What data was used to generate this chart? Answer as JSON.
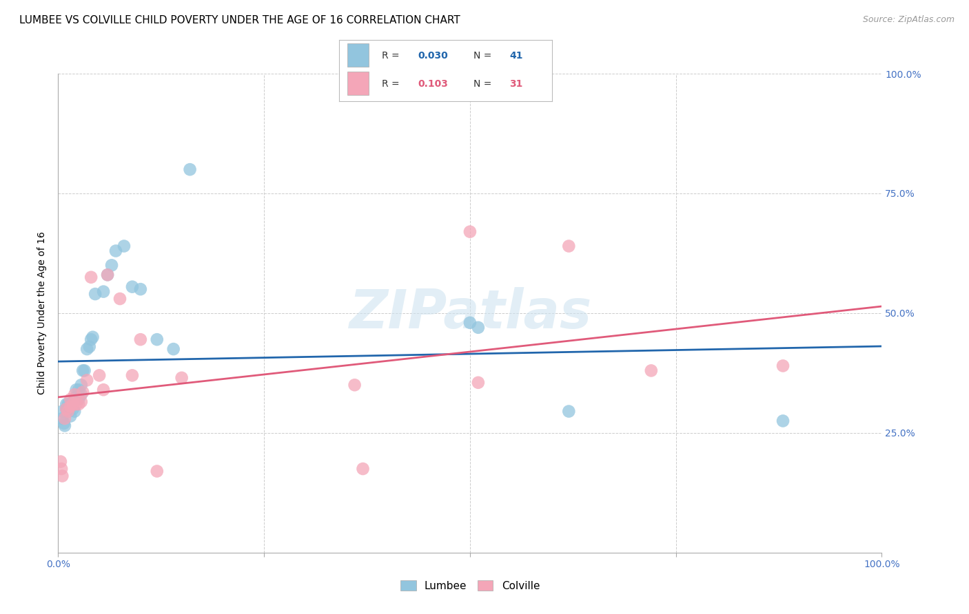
{
  "title": "LUMBEE VS COLVILLE CHILD POVERTY UNDER THE AGE OF 16 CORRELATION CHART",
  "source": "Source: ZipAtlas.com",
  "ylabel": "Child Poverty Under the Age of 16",
  "watermark": "ZIPatlas",
  "lumbee_R": "0.030",
  "lumbee_N": "41",
  "colville_R": "0.103",
  "colville_N": "31",
  "lumbee_color": "#92c5de",
  "colville_color": "#f4a6b8",
  "lumbee_line_color": "#2166ac",
  "colville_line_color": "#e05a7a",
  "xlim": [
    0,
    1
  ],
  "ylim": [
    0,
    1
  ],
  "background_color": "#ffffff",
  "grid_color": "#cccccc",
  "tick_color": "#4472c4",
  "title_fontsize": 11,
  "axis_label_fontsize": 10,
  "tick_fontsize": 10,
  "lumbee_x": [
    0.005,
    0.005,
    0.007,
    0.008,
    0.01,
    0.01,
    0.012,
    0.013,
    0.015,
    0.015,
    0.018,
    0.018,
    0.02,
    0.02,
    0.022,
    0.022,
    0.025,
    0.025,
    0.028,
    0.028,
    0.03,
    0.032,
    0.035,
    0.038,
    0.04,
    0.042,
    0.045,
    0.055,
    0.06,
    0.065,
    0.07,
    0.08,
    0.09,
    0.1,
    0.12,
    0.14,
    0.16,
    0.5,
    0.51,
    0.62,
    0.88
  ],
  "lumbee_y": [
    0.295,
    0.28,
    0.27,
    0.265,
    0.31,
    0.3,
    0.31,
    0.295,
    0.31,
    0.285,
    0.31,
    0.3,
    0.32,
    0.295,
    0.34,
    0.325,
    0.34,
    0.32,
    0.35,
    0.33,
    0.38,
    0.38,
    0.425,
    0.43,
    0.445,
    0.45,
    0.54,
    0.545,
    0.58,
    0.6,
    0.63,
    0.64,
    0.555,
    0.55,
    0.445,
    0.425,
    0.8,
    0.48,
    0.47,
    0.295,
    0.275
  ],
  "colville_x": [
    0.003,
    0.004,
    0.005,
    0.008,
    0.01,
    0.012,
    0.015,
    0.015,
    0.018,
    0.02,
    0.022,
    0.025,
    0.028,
    0.03,
    0.035,
    0.04,
    0.05,
    0.055,
    0.06,
    0.075,
    0.09,
    0.1,
    0.12,
    0.15,
    0.36,
    0.37,
    0.5,
    0.51,
    0.62,
    0.72,
    0.88
  ],
  "colville_y": [
    0.19,
    0.175,
    0.16,
    0.28,
    0.3,
    0.295,
    0.32,
    0.305,
    0.31,
    0.33,
    0.31,
    0.31,
    0.315,
    0.335,
    0.36,
    0.575,
    0.37,
    0.34,
    0.58,
    0.53,
    0.37,
    0.445,
    0.17,
    0.365,
    0.35,
    0.175,
    0.67,
    0.355,
    0.64,
    0.38,
    0.39
  ]
}
